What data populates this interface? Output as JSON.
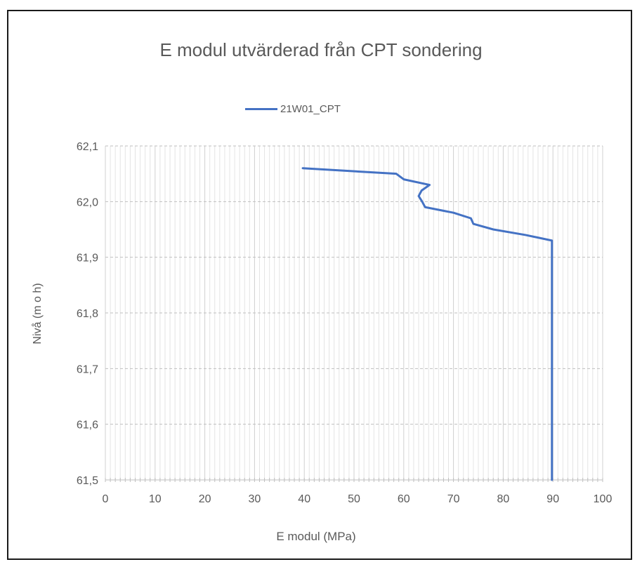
{
  "chart_data": {
    "type": "line",
    "title": "E modul utvärderad från CPT sondering",
    "xlabel": "E modul (MPa)",
    "ylabel": "Nivå (m o h)",
    "xlim": [
      0,
      100
    ],
    "ylim": [
      61.5,
      62.1
    ],
    "x_ticks": [
      "0",
      "10",
      "20",
      "30",
      "40",
      "50",
      "60",
      "70",
      "80",
      "90",
      "100"
    ],
    "y_ticks": [
      "62,1",
      "62,0",
      "61,9",
      "61,8",
      "61,7",
      "61,6",
      "61,5"
    ],
    "grid": true,
    "legend": "top-center",
    "series": [
      {
        "name": "21W01_CPT",
        "color": "#4472C4",
        "x": [
          39.7,
          58.5,
          60,
          65.2,
          63.6,
          63,
          63.7,
          64.3,
          70,
          73.5,
          74,
          78,
          84.5,
          89.8,
          89.8
        ],
        "y": [
          62.06,
          62.05,
          62.04,
          62.03,
          62.02,
          62.01,
          62.0,
          61.99,
          61.98,
          61.97,
          61.96,
          61.95,
          61.94,
          61.93,
          61.5
        ]
      }
    ]
  }
}
